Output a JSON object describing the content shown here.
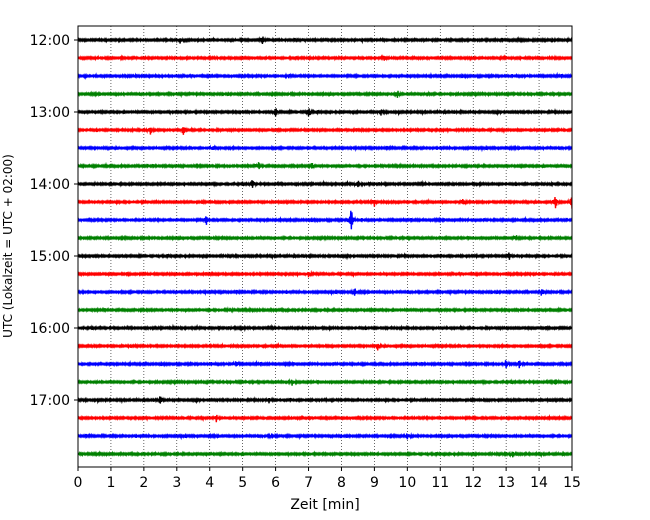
{
  "chart_data": {
    "type": "line",
    "title": "",
    "xlabel": "Zeit  [min]",
    "ylabel": "UTC (Lokalzeit = UTC + 02:00)",
    "xlim": [
      0,
      15
    ],
    "x_ticks": [
      0,
      1,
      2,
      3,
      4,
      5,
      6,
      7,
      8,
      9,
      10,
      11,
      12,
      13,
      14,
      15
    ],
    "x_tick_labels": [
      "0",
      "1",
      "2",
      "3",
      "4",
      "5",
      "6",
      "7",
      "8",
      "9",
      "10",
      "11",
      "12",
      "13",
      "14",
      "15"
    ],
    "y_tick_labels": [
      "12:00",
      "13:00",
      "14:00",
      "15:00",
      "16:00",
      "17:00"
    ],
    "rows_per_hour": 4,
    "row_minutes": 15,
    "start_time": "12:00",
    "end_time": "17:45",
    "grid": "vertical-dotted",
    "color_cycle": [
      "#000000",
      "#ff0000",
      "#0000ff",
      "#008000"
    ],
    "rows": [
      {
        "time": "12:00",
        "color": "#000000",
        "events": [
          {
            "t": 5.6,
            "a": 0.45
          },
          {
            "t": 3.1,
            "a": 0.3
          }
        ]
      },
      {
        "time": "12:15",
        "color": "#ff0000",
        "events": [
          {
            "t": 9.3,
            "a": 0.25
          }
        ]
      },
      {
        "time": "12:30",
        "color": "#0000ff",
        "events": [
          {
            "t": 6.4,
            "a": 0.2
          }
        ]
      },
      {
        "time": "12:45",
        "color": "#008000",
        "events": [
          {
            "t": 9.7,
            "a": 0.35
          },
          {
            "t": 10.6,
            "a": 0.25
          }
        ]
      },
      {
        "time": "13:00",
        "color": "#000000",
        "events": [
          {
            "t": 6.0,
            "a": 0.5
          },
          {
            "t": 7.0,
            "a": 0.45
          },
          {
            "t": 9.2,
            "a": 0.3
          }
        ]
      },
      {
        "time": "13:15",
        "color": "#ff0000",
        "events": [
          {
            "t": 2.2,
            "a": 0.45
          },
          {
            "t": 3.2,
            "a": 0.5
          }
        ]
      },
      {
        "time": "13:30",
        "color": "#0000ff",
        "events": [
          {
            "t": 4.1,
            "a": 0.2
          }
        ]
      },
      {
        "time": "13:45",
        "color": "#008000",
        "events": [
          {
            "t": 5.5,
            "a": 0.45
          },
          {
            "t": 7.1,
            "a": 0.35
          }
        ]
      },
      {
        "time": "14:00",
        "color": "#000000",
        "events": [
          {
            "t": 5.3,
            "a": 0.5
          },
          {
            "t": 8.5,
            "a": 0.45
          }
        ]
      },
      {
        "time": "14:15",
        "color": "#ff0000",
        "events": [
          {
            "t": 14.5,
            "a": 0.75
          },
          {
            "t": 15.0,
            "a": 0.9
          },
          {
            "t": 9.0,
            "a": 0.4
          },
          {
            "t": 11.7,
            "a": 0.35
          }
        ]
      },
      {
        "time": "14:30",
        "color": "#0000ff",
        "events": [
          {
            "t": 8.3,
            "a": 1.3
          },
          {
            "t": 3.9,
            "a": 0.45
          }
        ]
      },
      {
        "time": "14:45",
        "color": "#008000",
        "events": [
          {
            "t": 13.3,
            "a": 0.3
          }
        ]
      },
      {
        "time": "15:00",
        "color": "#000000",
        "events": [
          {
            "t": 13.1,
            "a": 0.4
          }
        ]
      },
      {
        "time": "15:15",
        "color": "#ff0000",
        "events": [
          {
            "t": 7.0,
            "a": 0.25
          }
        ]
      },
      {
        "time": "15:30",
        "color": "#0000ff",
        "events": [
          {
            "t": 8.4,
            "a": 0.4
          },
          {
            "t": 14.1,
            "a": 0.3
          }
        ]
      },
      {
        "time": "15:45",
        "color": "#008000",
        "events": [
          {
            "t": 4.6,
            "a": 0.2
          }
        ]
      },
      {
        "time": "16:00",
        "color": "#000000",
        "events": [
          {
            "t": 5.0,
            "a": 0.2
          }
        ]
      },
      {
        "time": "16:15",
        "color": "#ff0000",
        "events": [
          {
            "t": 9.1,
            "a": 0.35
          }
        ]
      },
      {
        "time": "16:30",
        "color": "#0000ff",
        "events": [
          {
            "t": 13.0,
            "a": 0.45
          },
          {
            "t": 13.4,
            "a": 0.4
          },
          {
            "t": 4.8,
            "a": 0.35
          }
        ]
      },
      {
        "time": "16:45",
        "color": "#008000",
        "events": [
          {
            "t": 14.5,
            "a": 0.4
          },
          {
            "t": 6.5,
            "a": 0.3
          }
        ]
      },
      {
        "time": "17:00",
        "color": "#000000",
        "events": [
          {
            "t": 2.5,
            "a": 0.4
          },
          {
            "t": 5.8,
            "a": 0.3
          }
        ]
      },
      {
        "time": "17:15",
        "color": "#ff0000",
        "events": [
          {
            "t": 4.2,
            "a": 0.35
          }
        ]
      },
      {
        "time": "17:30",
        "color": "#0000ff",
        "events": [
          {
            "t": 10.0,
            "a": 0.35
          },
          {
            "t": 5.9,
            "a": 0.3
          }
        ]
      },
      {
        "time": "17:45",
        "color": "#008000",
        "events": [
          {
            "t": 13.2,
            "a": 0.3
          }
        ]
      }
    ]
  }
}
